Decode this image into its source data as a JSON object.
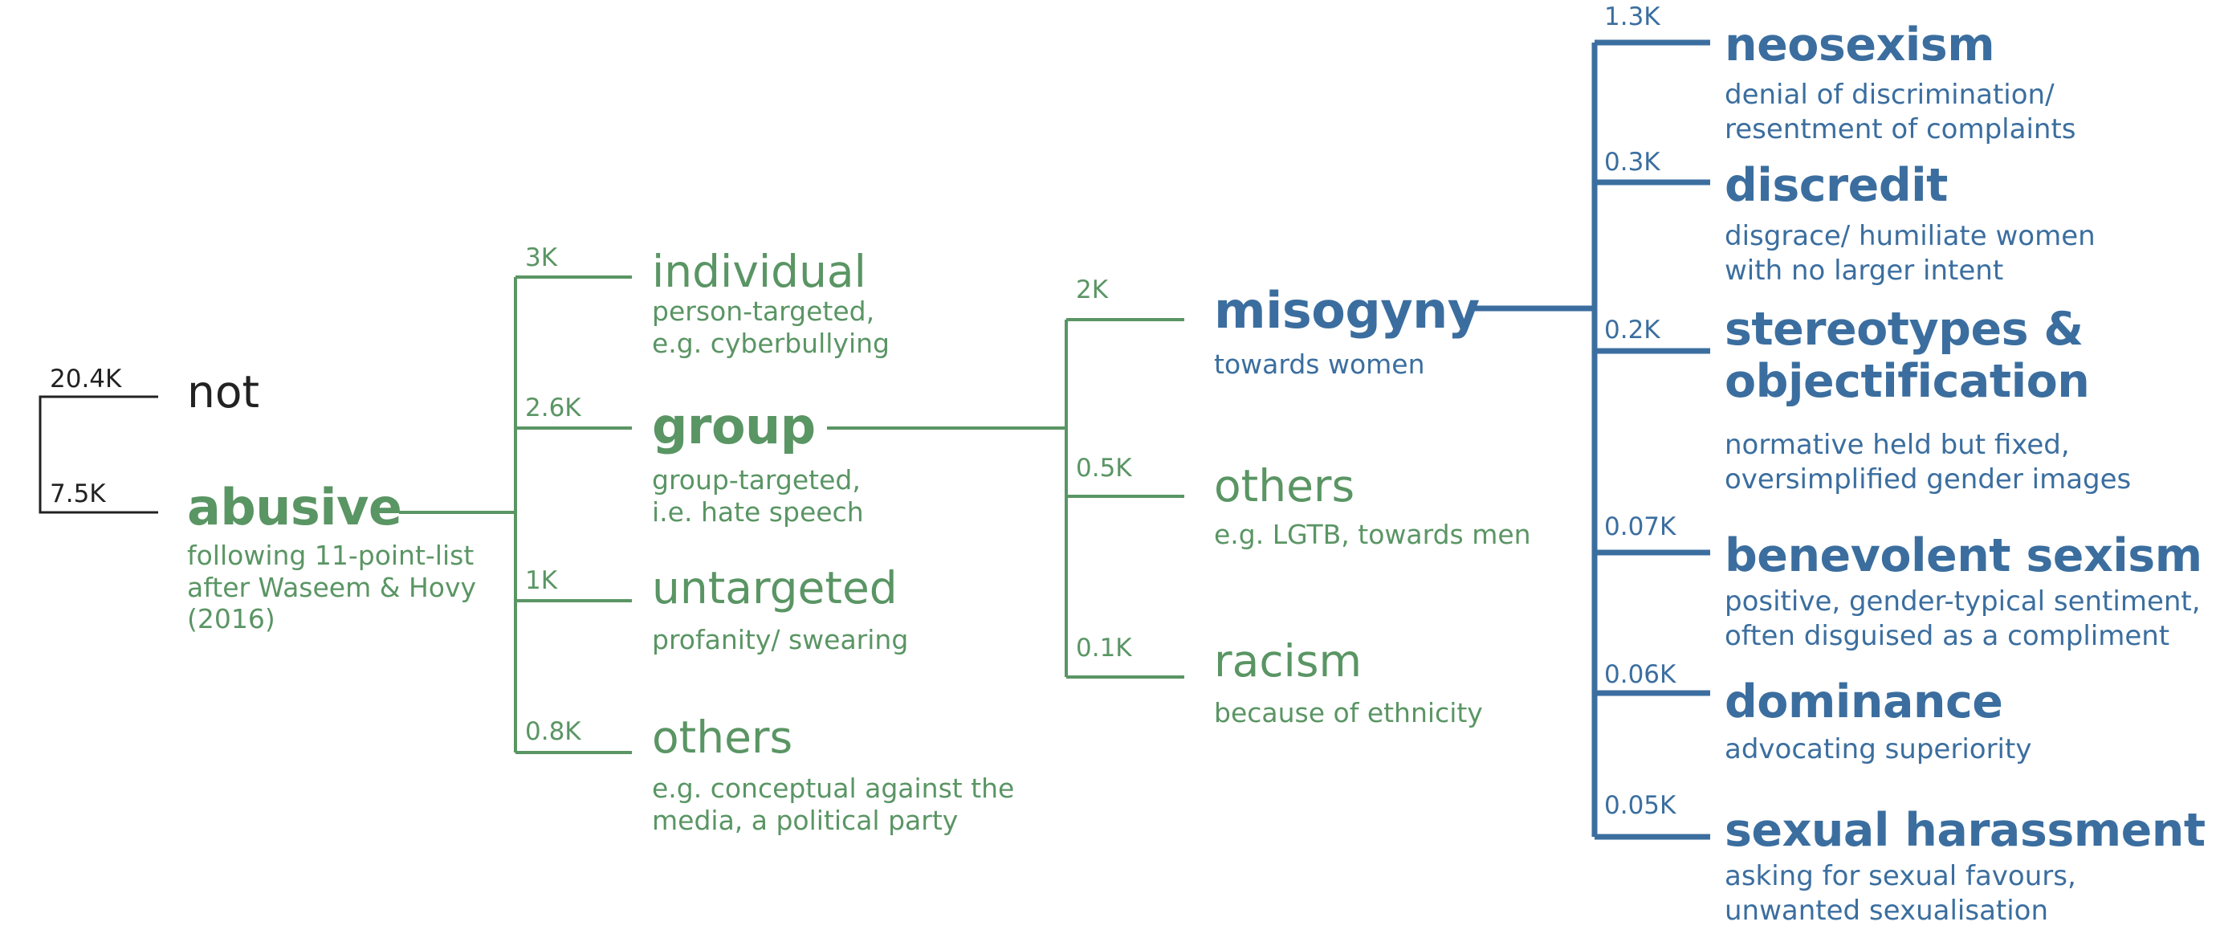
{
  "tree": {
    "root": {
      "not": {
        "count": "20.4K",
        "label": "not"
      },
      "abusive": {
        "count": "7.5K",
        "label": "abusive",
        "desc_lines": [
          "following 11-point-list",
          "after Waseem & Hovy",
          "(2016)"
        ]
      }
    },
    "abusive_children": [
      {
        "count": "3K",
        "label": "individual",
        "desc_lines": [
          "person-targeted,",
          "e.g.  cyberbullying"
        ]
      },
      {
        "count": "2.6K",
        "label": "group",
        "desc_lines": [
          "group-targeted,",
          "i.e. hate speech"
        ]
      },
      {
        "count": "1K",
        "label": "untargeted",
        "desc_lines": [
          "profanity/ swearing"
        ]
      },
      {
        "count": "0.8K",
        "label": "others",
        "desc_lines": [
          "e.g. conceptual against the",
          "media, a political party"
        ]
      }
    ],
    "group_children": [
      {
        "count": "2K",
        "label": "misogyny",
        "desc_lines": [
          "towards women"
        ]
      },
      {
        "count": "0.5K",
        "label": "others",
        "desc_lines": [
          "e.g. LGTB, towards men"
        ]
      },
      {
        "count": "0.1K",
        "label": "racism",
        "desc_lines": [
          "because of ethnicity"
        ]
      }
    ],
    "misogyny_children": [
      {
        "count": "1.3K",
        "label": "neosexism",
        "label_lines": [
          "neosexism"
        ],
        "desc_lines": [
          "denial of discrimination/",
          "resentment of complaints"
        ]
      },
      {
        "count": "0.3K",
        "label": "discredit",
        "label_lines": [
          "discredit"
        ],
        "desc_lines": [
          "disgrace/ humiliate women",
          "with no larger intent"
        ]
      },
      {
        "count": "0.2K",
        "label": "stereotypes & objectification",
        "label_lines": [
          "stereotypes &",
          "objectification"
        ],
        "desc_lines": [
          "normative held but fixed,",
          "oversimplified gender images"
        ]
      },
      {
        "count": "0.07K",
        "label": "benevolent sexism",
        "label_lines": [
          "benevolent sexism"
        ],
        "desc_lines": [
          "positive, gender-typical sentiment,",
          "often disguised as a compliment"
        ]
      },
      {
        "count": "0.06K",
        "label": "dominance",
        "label_lines": [
          "dominance"
        ],
        "desc_lines": [
          "advocating superiority"
        ]
      },
      {
        "count": "0.05K",
        "label": "sexual harassment",
        "label_lines": [
          "sexual harassment"
        ],
        "desc_lines": [
          "asking for sexual favours,",
          "unwanted sexualisation"
        ]
      }
    ],
    "colors": {
      "level0": "#222222",
      "abusive_branch": "#5a9564",
      "misogyny_branch": "#3b6e9f"
    }
  }
}
